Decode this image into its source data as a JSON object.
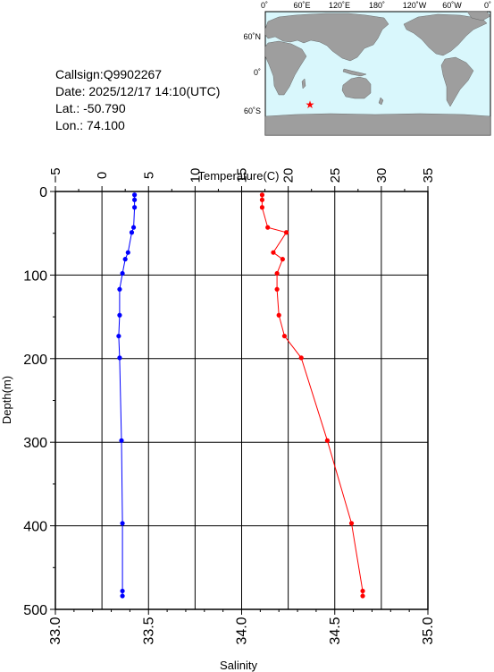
{
  "header": {
    "callsign": "Callsign:Q9902267",
    "date": "Date:  2025/12/17 14:10(UTC)",
    "lat": "Lat.:  -50.790",
    "lon": "Lon.:   74.100"
  },
  "map": {
    "top_labels": [
      "0˚",
      "60˚E",
      "120˚E",
      "180˚",
      "120˚W",
      "60˚W",
      "0˚"
    ],
    "left_labels": [
      "60˚N",
      "0˚",
      "60˚S"
    ],
    "float_position": {
      "lat": -50.79,
      "lon": 74.1
    },
    "colors": {
      "ocean": "#d9f7fc",
      "land": "#9e9e9e",
      "marker": "#ff0000"
    }
  },
  "chart_data": {
    "type": "line",
    "ylabel": "Depth(m)",
    "ylim": [
      500,
      0
    ],
    "yticks": [
      "0",
      "100",
      "200",
      "300",
      "400",
      "500"
    ],
    "grid": true,
    "temperature_axis": {
      "label": "Temperature(C)",
      "range": [
        -5,
        35
      ],
      "ticks": [
        "−5",
        "0",
        "5",
        "10",
        "15",
        "20",
        "25",
        "30",
        "35"
      ]
    },
    "salinity_axis": {
      "label": "Salinity",
      "range": [
        33.0,
        35.0
      ],
      "ticks": [
        "33.0",
        "33.5",
        "34.0",
        "34.5",
        "35.0"
      ]
    },
    "series": [
      {
        "axis": "salinity",
        "color": "#ff0000",
        "points": [
          [
            34.11,
            4
          ],
          [
            34.11,
            10
          ],
          [
            34.11,
            19
          ],
          [
            34.14,
            43
          ],
          [
            34.24,
            49
          ],
          [
            34.17,
            73
          ],
          [
            34.22,
            81
          ],
          [
            34.19,
            98
          ],
          [
            34.19,
            117
          ],
          [
            34.2,
            148
          ],
          [
            34.23,
            173
          ],
          [
            34.32,
            199
          ],
          [
            34.46,
            298
          ],
          [
            34.59,
            397
          ],
          [
            34.65,
            478
          ],
          [
            34.65,
            484
          ]
        ]
      },
      {
        "axis": "temperature",
        "color": "#0000ff",
        "points": [
          [
            3.5,
            4
          ],
          [
            3.5,
            10
          ],
          [
            3.5,
            19
          ],
          [
            3.4,
            43
          ],
          [
            3.2,
            49
          ],
          [
            2.8,
            73
          ],
          [
            2.5,
            81
          ],
          [
            2.2,
            98
          ],
          [
            1.9,
            117
          ],
          [
            1.9,
            148
          ],
          [
            1.8,
            173
          ],
          [
            1.9,
            199
          ],
          [
            2.1,
            298
          ],
          [
            2.2,
            397
          ],
          [
            2.2,
            478
          ],
          [
            2.2,
            484
          ]
        ]
      }
    ]
  }
}
